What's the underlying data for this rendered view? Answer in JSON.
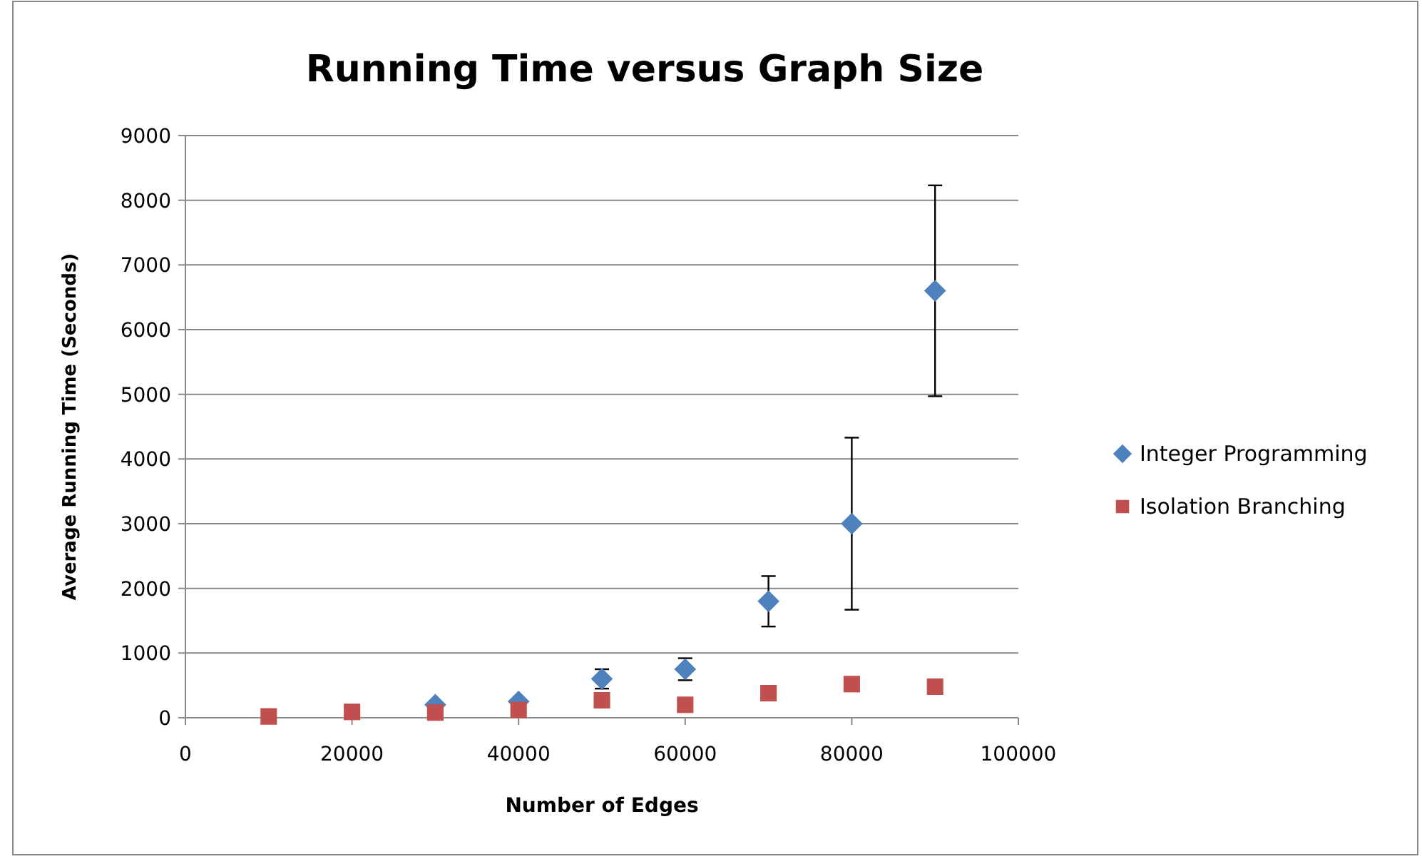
{
  "chart_data": {
    "type": "scatter",
    "title": "Running Time versus Graph Size",
    "xlabel": "Number of Edges",
    "ylabel": "Average Running Time (Seconds)",
    "xlim": [
      0,
      100000
    ],
    "xticks": [
      0,
      20000,
      40000,
      60000,
      80000,
      100000
    ],
    "ylim": [
      0,
      9000
    ],
    "yticks": [
      0,
      1000,
      2000,
      3000,
      4000,
      5000,
      6000,
      7000,
      8000,
      9000
    ],
    "grid": "y",
    "legend": "right",
    "x": [
      10000,
      20000,
      30000,
      40000,
      50000,
      60000,
      70000,
      80000,
      90000
    ],
    "series": [
      {
        "name": "Integer Programming",
        "color": "#4f81bd",
        "marker": "diamond",
        "values": [
          null,
          null,
          200,
          250,
          600,
          750,
          1800,
          3000,
          6600
        ],
        "errors": [
          null,
          null,
          null,
          null,
          150,
          170,
          390,
          1330,
          1630
        ]
      },
      {
        "name": "Isolation Branching",
        "color": "#c0504d",
        "marker": "square",
        "values": [
          20,
          90,
          80,
          120,
          270,
          200,
          380,
          520,
          480
        ]
      }
    ]
  }
}
